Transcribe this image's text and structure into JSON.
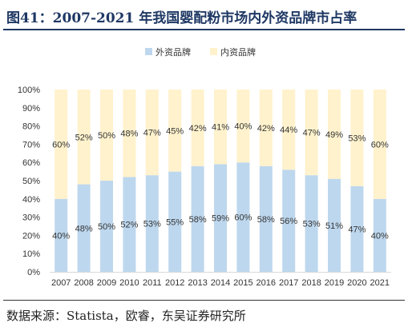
{
  "title": "图41：2007-2021 年我国婴配粉市场内外资品牌市占率",
  "source": "数据来源：Statista，欧睿，东吴证券研究所",
  "chart_data": {
    "type": "bar",
    "stacked": true,
    "categories": [
      "2007",
      "2008",
      "2009",
      "2010",
      "2011",
      "2012",
      "2013",
      "2014",
      "2015",
      "2016",
      "2017",
      "2018",
      "2019",
      "2020",
      "2021"
    ],
    "series": [
      {
        "name": "外资品牌",
        "color": "#bdd7ee",
        "values": [
          40,
          48,
          50,
          52,
          53,
          55,
          58,
          59,
          60,
          58,
          56,
          53,
          51,
          47,
          40
        ]
      },
      {
        "name": "内资品牌",
        "color": "#fff2cc",
        "values": [
          60,
          52,
          50,
          48,
          47,
          45,
          42,
          41,
          40,
          42,
          44,
          47,
          49,
          53,
          60
        ]
      }
    ],
    "ytick_labels": [
      "0%",
      "10%",
      "20%",
      "30%",
      "40%",
      "50%",
      "60%",
      "70%",
      "80%",
      "90%",
      "100%"
    ],
    "ylim": [
      0,
      100
    ],
    "legend_position": "top",
    "grid": false,
    "value_suffix": "%"
  }
}
